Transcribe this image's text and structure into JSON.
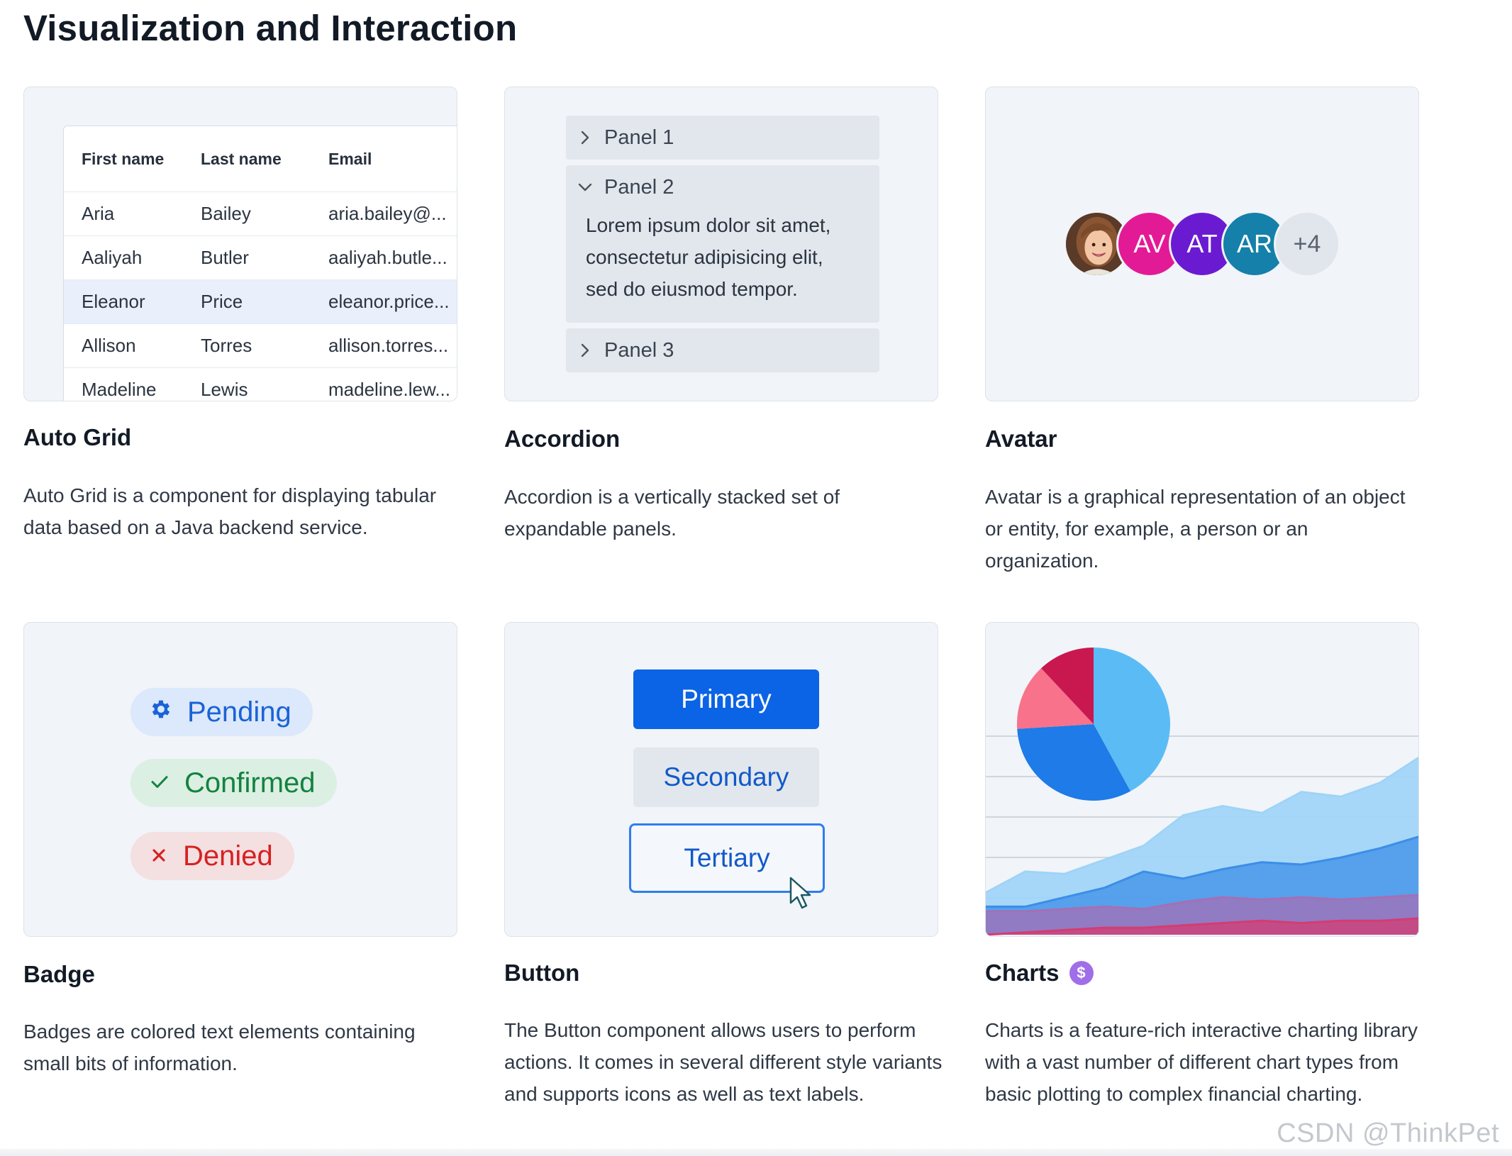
{
  "page": {
    "title": "Visualization and Interaction"
  },
  "components": [
    {
      "title": "Auto Grid",
      "description": "Auto Grid is a component for displaying tabular data based on a Java backend service.",
      "grid": {
        "columns": [
          "First name",
          "Last name",
          "Email"
        ],
        "rows": [
          [
            "Aria",
            "Bailey",
            "aria.bailey@..."
          ],
          [
            "Aaliyah",
            "Butler",
            "aaliyah.butle..."
          ],
          [
            "Eleanor",
            "Price",
            "eleanor.price..."
          ],
          [
            "Allison",
            "Torres",
            "allison.torres..."
          ],
          [
            "Madeline",
            "Lewis",
            "madeline.lew..."
          ]
        ],
        "selected_row": 2
      }
    },
    {
      "title": "Accordion",
      "description": "Accordion is a vertically stacked set of expandable panels.",
      "accordion": {
        "panels": [
          {
            "label": "Panel 1",
            "expanded": false
          },
          {
            "label": "Panel 2",
            "expanded": true,
            "content": [
              "Lorem ipsum dolor sit amet,",
              "consectetur adipisicing elit,",
              "sed do eiusmod tempor."
            ]
          },
          {
            "label": "Panel 3",
            "expanded": false
          }
        ]
      }
    },
    {
      "title": "Avatar",
      "description": "Avatar is a graphical representation of an object or entity, for example, a person or an organization.",
      "avatars": [
        {
          "type": "photo",
          "icon": "person-photo-icon"
        },
        {
          "abbr": "AV",
          "color": "#e31a96"
        },
        {
          "abbr": "AT",
          "color": "#6a1bd1"
        },
        {
          "abbr": "AR",
          "color": "#1580a9"
        },
        {
          "abbr": "+4",
          "color": "#e1e6ec"
        }
      ]
    },
    {
      "title": "Badge",
      "description": "Badges are colored text elements containing small bits of information.",
      "badges": [
        {
          "label": "Pending",
          "icon": "gear-icon",
          "fg": "#1a63d6",
          "bg": "#dce8fb"
        },
        {
          "label": "Confirmed",
          "icon": "check-icon",
          "fg": "#13833f",
          "bg": "#dcefe3"
        },
        {
          "label": "Denied",
          "icon": "close-icon",
          "fg": "#d62121",
          "bg": "#f4dfe1"
        }
      ]
    },
    {
      "title": "Button",
      "description": "The Button component allows users to perform actions. It comes in several different style variants and supports icons as well as text labels.",
      "buttons": [
        {
          "label": "Primary",
          "variant": "primary"
        },
        {
          "label": "Secondary",
          "variant": "secondary"
        },
        {
          "label": "Tertiary",
          "variant": "tertiary"
        }
      ]
    },
    {
      "title": "Charts",
      "title_badge_icon": "dollar-icon",
      "title_badge_text": "$",
      "description": "Charts is a feature-rich interactive charting library with a vast number of different chart types from basic plotting to complex financial charting."
    }
  ],
  "chart_data": [
    {
      "type": "pie",
      "series": [
        {
          "values": [
            42,
            32,
            14,
            12
          ]
        }
      ],
      "colors": [
        "#5bbcf5",
        "#1e7be8",
        "#f7728a",
        "#c9174f"
      ]
    },
    {
      "type": "area",
      "x": [
        0,
        1,
        2,
        3,
        4,
        5,
        6,
        7,
        8,
        9,
        10,
        11
      ],
      "series": [
        {
          "values": [
            18,
            27,
            26,
            32,
            38,
            51,
            55,
            52,
            61,
            59,
            65,
            76
          ]
        },
        {
          "values": [
            12,
            12,
            16,
            20,
            27,
            24,
            28,
            31,
            30,
            33,
            37,
            42
          ]
        },
        {
          "values": [
            10,
            10,
            11,
            12,
            11,
            14,
            16,
            15,
            16,
            15,
            16,
            17
          ]
        },
        {
          "values": [
            0,
            1,
            2,
            3,
            3,
            4,
            5,
            6,
            5,
            6,
            6,
            7
          ]
        }
      ],
      "colors": [
        "#9ed4f7",
        "#3b8ee8",
        "#a56fb5",
        "#d43c72"
      ],
      "ylim": [
        0,
        100
      ],
      "grid": true
    }
  ],
  "watermark": "CSDN @ThinkPet"
}
